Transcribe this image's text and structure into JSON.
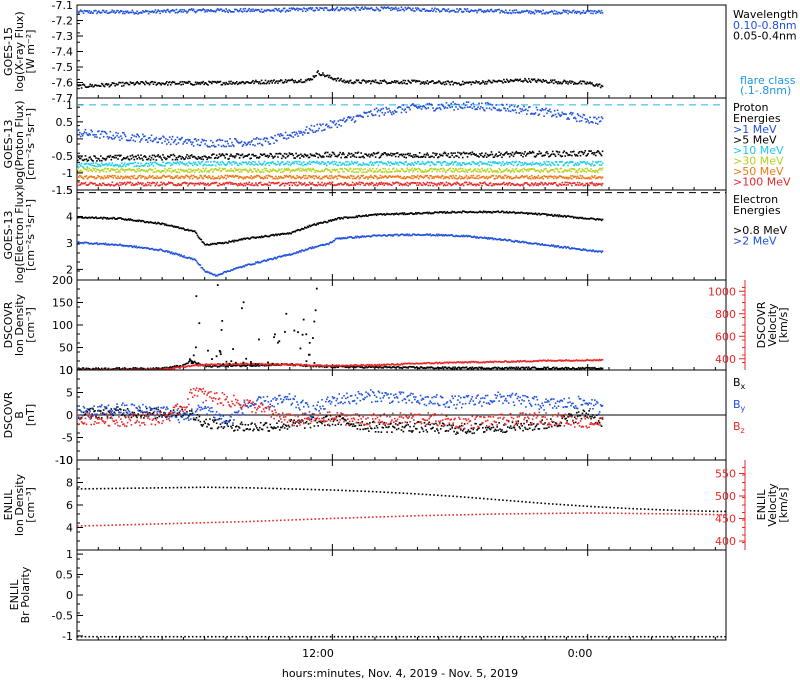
{
  "x_axis": {
    "label": "hours:minutes, Nov.  4, 2019 - Nov.  5, 2019",
    "ticks": [
      {
        "t": 12,
        "label": "12:00"
      },
      {
        "t": 24,
        "label": "0:00"
      }
    ],
    "range_hours": [
      0,
      30.5
    ]
  },
  "chart_data": [
    {
      "type": "scatter",
      "id": "xray",
      "ylabel": [
        "GOES-15",
        "log(X-ray Flux)",
        "[W m⁻²]"
      ],
      "ylim": [
        -7.7,
        -7.1
      ],
      "yticks": [
        -7.1,
        -7.2,
        -7.3,
        -7.4,
        -7.5,
        -7.6,
        -7.7
      ],
      "legend": {
        "title": "Wavelength",
        "entries": [
          {
            "label": "0.10-0.8nm",
            "color": "#1e50dc"
          },
          {
            "label": "0.05-0.4nm",
            "color": "#000000"
          }
        ],
        "note": [
          "flare class",
          "(.1-.8nm)"
        ],
        "note_color": "#1e96e6"
      },
      "series": [
        {
          "name": "0.10-0.8nm",
          "color": "#1e50dc",
          "x": [
            0,
            3,
            6,
            9,
            12,
            15,
            18,
            21,
            24,
            24.7
          ],
          "y": [
            -7.14,
            -7.14,
            -7.13,
            -7.13,
            -7.12,
            -7.12,
            -7.13,
            -7.14,
            -7.14,
            -7.14
          ],
          "spread": 0.012
        },
        {
          "name": "0.05-0.4nm",
          "color": "#000000",
          "x": [
            0,
            3,
            6,
            9,
            10.9,
            11.3,
            11.8,
            12.6,
            15,
            18,
            21,
            24,
            24.7
          ],
          "y": [
            -7.62,
            -7.6,
            -7.6,
            -7.59,
            -7.58,
            -7.53,
            -7.56,
            -7.59,
            -7.59,
            -7.6,
            -7.58,
            -7.6,
            -7.62
          ],
          "spread": 0.012
        }
      ]
    },
    {
      "type": "scatter",
      "id": "proton",
      "ylabel": [
        "GOES-13",
        "log(Proton Flux)",
        "[cm⁻²s⁻¹sr⁻¹]"
      ],
      "ylim": [
        -1.5,
        1.2
      ],
      "yticks": [
        1.0,
        0.5,
        0.0,
        -0.5,
        -1.0,
        -1.5
      ],
      "threshold": {
        "value": 1.0,
        "color": "#1eb4e6"
      },
      "legend": {
        "title": [
          "Proton",
          "Energies"
        ],
        "entries": [
          {
            "label": ">1 MeV",
            "color": "#1e50dc"
          },
          {
            "label": ">5 MeV",
            "color": "#000000"
          },
          {
            "label": ">10 MeV",
            "color": "#1ecce6"
          },
          {
            "label": ">30 MeV",
            "color": "#b4d21e"
          },
          {
            "label": ">50 MeV",
            "color": "#f07814"
          },
          {
            "label": ">100 MeV",
            "color": "#e62828"
          }
        ]
      },
      "series": [
        {
          "name": ">1 MeV",
          "color": "#1e50dc",
          "x": [
            0,
            3,
            6,
            9,
            10,
            12,
            14,
            16,
            18,
            20,
            22,
            24,
            24.7
          ],
          "y": [
            0.2,
            0.05,
            -0.1,
            -0.05,
            0.15,
            0.45,
            0.8,
            0.95,
            1.0,
            0.95,
            0.8,
            0.6,
            0.55
          ],
          "spread": 0.12
        },
        {
          "name": ">5 MeV",
          "color": "#000000",
          "x": [
            0,
            6,
            12,
            18,
            24.7
          ],
          "y": [
            -0.55,
            -0.5,
            -0.45,
            -0.45,
            -0.4
          ],
          "spread": 0.08
        },
        {
          "name": ">10 MeV",
          "color": "#1ecce6",
          "x": [
            0,
            6,
            12,
            18,
            24.7
          ],
          "y": [
            -0.75,
            -0.7,
            -0.7,
            -0.7,
            -0.7
          ],
          "spread": 0.06
        },
        {
          "name": ">30 MeV",
          "color": "#b4d21e",
          "x": [
            0,
            6,
            12,
            18,
            24.7
          ],
          "y": [
            -0.9,
            -0.9,
            -0.9,
            -0.9,
            -0.9
          ],
          "spread": 0.06
        },
        {
          "name": ">50 MeV",
          "color": "#f07814",
          "x": [
            0,
            6,
            12,
            18,
            24.7
          ],
          "y": [
            -1.1,
            -1.1,
            -1.1,
            -1.1,
            -1.1
          ],
          "spread": 0.05
        },
        {
          "name": ">100 MeV",
          "color": "#e62828",
          "x": [
            0,
            6,
            12,
            18,
            24.7
          ],
          "y": [
            -1.3,
            -1.3,
            -1.3,
            -1.3,
            -1.3
          ],
          "spread": 0.05
        }
      ]
    },
    {
      "type": "scatter",
      "id": "electron",
      "ylabel": [
        "GOES-13",
        "log(Electron Flux)",
        "[cm⁻²s⁻¹sr⁻¹]"
      ],
      "ylim": [
        1.6,
        5.0
      ],
      "yticks": [
        5,
        4,
        3,
        2
      ],
      "threshold": {
        "value": 4.9,
        "color": "#000000",
        "dash": true
      },
      "legend": {
        "title": [
          "Electron",
          "Energies"
        ],
        "entries": [
          {
            "label": ">0.8 MeV",
            "color": "#000000"
          },
          {
            "label": ">2 MeV",
            "color": "#1e50dc"
          }
        ]
      },
      "series": [
        {
          "name": ">0.8 MeV",
          "color": "#000000",
          "x": [
            0,
            2,
            4,
            5.5,
            6,
            7,
            8,
            9,
            10,
            11,
            11.8,
            12.2,
            14,
            16,
            18,
            20,
            22,
            24,
            24.7
          ],
          "y": [
            4.0,
            3.95,
            3.75,
            3.45,
            2.95,
            3.05,
            3.2,
            3.3,
            3.4,
            3.7,
            3.85,
            3.95,
            4.1,
            4.15,
            4.2,
            4.2,
            4.1,
            3.95,
            3.9
          ],
          "spread": 0.03
        },
        {
          "name": ">2 MeV",
          "color": "#1e50dc",
          "x": [
            0,
            2,
            4,
            5.5,
            6,
            6.5,
            7,
            8,
            9,
            10,
            11,
            11.8,
            12.2,
            14,
            16,
            18,
            20,
            22,
            24,
            24.7
          ],
          "y": [
            3.05,
            2.95,
            2.75,
            2.4,
            1.95,
            1.8,
            1.95,
            2.2,
            2.4,
            2.6,
            2.85,
            3.0,
            3.2,
            3.3,
            3.35,
            3.3,
            3.15,
            2.95,
            2.75,
            2.7
          ],
          "spread": 0.03
        }
      ]
    },
    {
      "type": "scatter",
      "id": "density",
      "ylabel": [
        "DSCOVR",
        "Ion Density",
        "[cm⁻³]"
      ],
      "ylim": [
        0,
        200
      ],
      "yticks": [
        200,
        150,
        100,
        50,
        0
      ],
      "y2label": [
        "DSCOVR",
        "Velocity",
        "[km/s]"
      ],
      "y2lim": [
        300,
        1100
      ],
      "y2ticks": [
        1000,
        800,
        600,
        400
      ],
      "y2color": "#e62828",
      "series": [
        {
          "name": "Ion Density",
          "color": "#000000",
          "axis": "y",
          "x": [
            0,
            4,
            5,
            5.3,
            6,
            8,
            10,
            11,
            12,
            14,
            16,
            18,
            20,
            22,
            24,
            24.7
          ],
          "y": [
            4,
            5,
            12,
            22,
            10,
            12,
            14,
            10,
            9,
            8,
            7,
            6,
            6,
            6,
            5,
            5
          ],
          "spread": 2
        },
        {
          "name": "Velocity",
          "color": "#e62828",
          "axis": "y2",
          "x": [
            0,
            4,
            5,
            6,
            8,
            10,
            12,
            14,
            16,
            18,
            20,
            22,
            24,
            24.7
          ],
          "y": [
            305,
            310,
            335,
            355,
            360,
            355,
            345,
            350,
            365,
            375,
            380,
            390,
            395,
            395
          ],
          "spread": 6
        }
      ],
      "spikes": {
        "x_range": [
          5.2,
          11.5
        ],
        "y_range": [
          15,
          195
        ],
        "count": 55,
        "color": "#000000"
      }
    },
    {
      "type": "scatter",
      "id": "bfield",
      "ylabel": [
        "DSCOVR",
        "B",
        "[nT]"
      ],
      "ylim": [
        -10,
        10
      ],
      "yticks": [
        10,
        5,
        0,
        -5,
        -10
      ],
      "zero_line": true,
      "legend": {
        "entries": [
          {
            "label": "Bx",
            "color": "#000000"
          },
          {
            "label": "By",
            "color": "#1e50dc"
          },
          {
            "label": "Bz",
            "color": "#e62828"
          }
        ]
      },
      "series": [
        {
          "name": "Bx",
          "color": "#000000",
          "x": [
            0,
            2,
            4,
            5,
            6,
            7,
            8,
            10,
            12,
            14,
            16,
            18,
            20,
            22,
            24,
            24.7
          ],
          "y": [
            0.5,
            0.8,
            0.5,
            1.0,
            -1.5,
            -2.0,
            -2.5,
            -2.0,
            -1.0,
            -2.5,
            -2.5,
            -3.0,
            -2.5,
            -2.0,
            0.5,
            -1.5
          ],
          "spread": 1.2
        },
        {
          "name": "By",
          "color": "#1e50dc",
          "x": [
            0,
            2,
            4,
            5,
            6,
            7,
            8,
            10,
            11,
            12,
            14,
            16,
            18,
            20,
            22,
            24,
            24.7
          ],
          "y": [
            0.5,
            1.5,
            1.0,
            -0.5,
            2.0,
            -1.5,
            2.5,
            3.5,
            1.0,
            3.5,
            4.5,
            3.5,
            3.0,
            4.0,
            2.5,
            3.0,
            1.0
          ],
          "spread": 1.4
        },
        {
          "name": "Bz",
          "color": "#e62828",
          "x": [
            0,
            2,
            4,
            5,
            5.5,
            6,
            7,
            8,
            10,
            12,
            14,
            16,
            18,
            20,
            22,
            24,
            24.7
          ],
          "y": [
            -0.5,
            -1.0,
            -0.5,
            2.0,
            6.0,
            4.5,
            3.5,
            2.5,
            -1.0,
            -0.5,
            -1.0,
            -0.5,
            -1.5,
            -1.0,
            -0.5,
            -1.5,
            -1.5
          ],
          "spread": 1.4
        }
      ]
    },
    {
      "type": "scatter",
      "id": "enlil",
      "ylabel": [
        "ENLIL",
        "Ion Density",
        "[cm⁻³]"
      ],
      "ylim": [
        2,
        10
      ],
      "yticks": [
        10,
        8,
        6,
        4
      ],
      "y2label": [
        "ENLIL",
        "Velocity",
        "[km/s]"
      ],
      "y2lim": [
        380,
        580
      ],
      "y2ticks": [
        550,
        500,
        450,
        400
      ],
      "y2color": "#e62828",
      "series": [
        {
          "name": "Ion Density",
          "color": "#000000",
          "axis": "y",
          "x": [
            0,
            2,
            4,
            6,
            8,
            10,
            12,
            14,
            16,
            18,
            20,
            22,
            24,
            26,
            28,
            30,
            30.5
          ],
          "y": [
            7.5,
            7.55,
            7.6,
            7.65,
            7.6,
            7.5,
            7.4,
            7.25,
            7.05,
            6.8,
            6.5,
            6.2,
            5.95,
            5.75,
            5.6,
            5.5,
            5.5
          ],
          "spread": 0
        },
        {
          "name": "Velocity",
          "color": "#e62828",
          "axis": "y2",
          "x": [
            0,
            4,
            8,
            12,
            16,
            20,
            24,
            28,
            30.5
          ],
          "y": [
            435,
            440,
            445,
            452,
            458,
            462,
            464,
            462,
            460
          ],
          "spread": 0
        }
      ]
    },
    {
      "type": "scatter",
      "id": "polarity",
      "ylabel": [
        "ENLIL",
        "Br Polarity"
      ],
      "ylim": [
        -1.1,
        1.1
      ],
      "yticks": [
        1.0,
        0.5,
        0.0,
        -0.5,
        -1.0
      ],
      "series": [
        {
          "name": "Br Polarity",
          "color": "#000000",
          "axis": "y",
          "x": [
            0,
            30.5
          ],
          "y": [
            -1.0,
            -1.0
          ],
          "spread": 0
        }
      ]
    }
  ]
}
